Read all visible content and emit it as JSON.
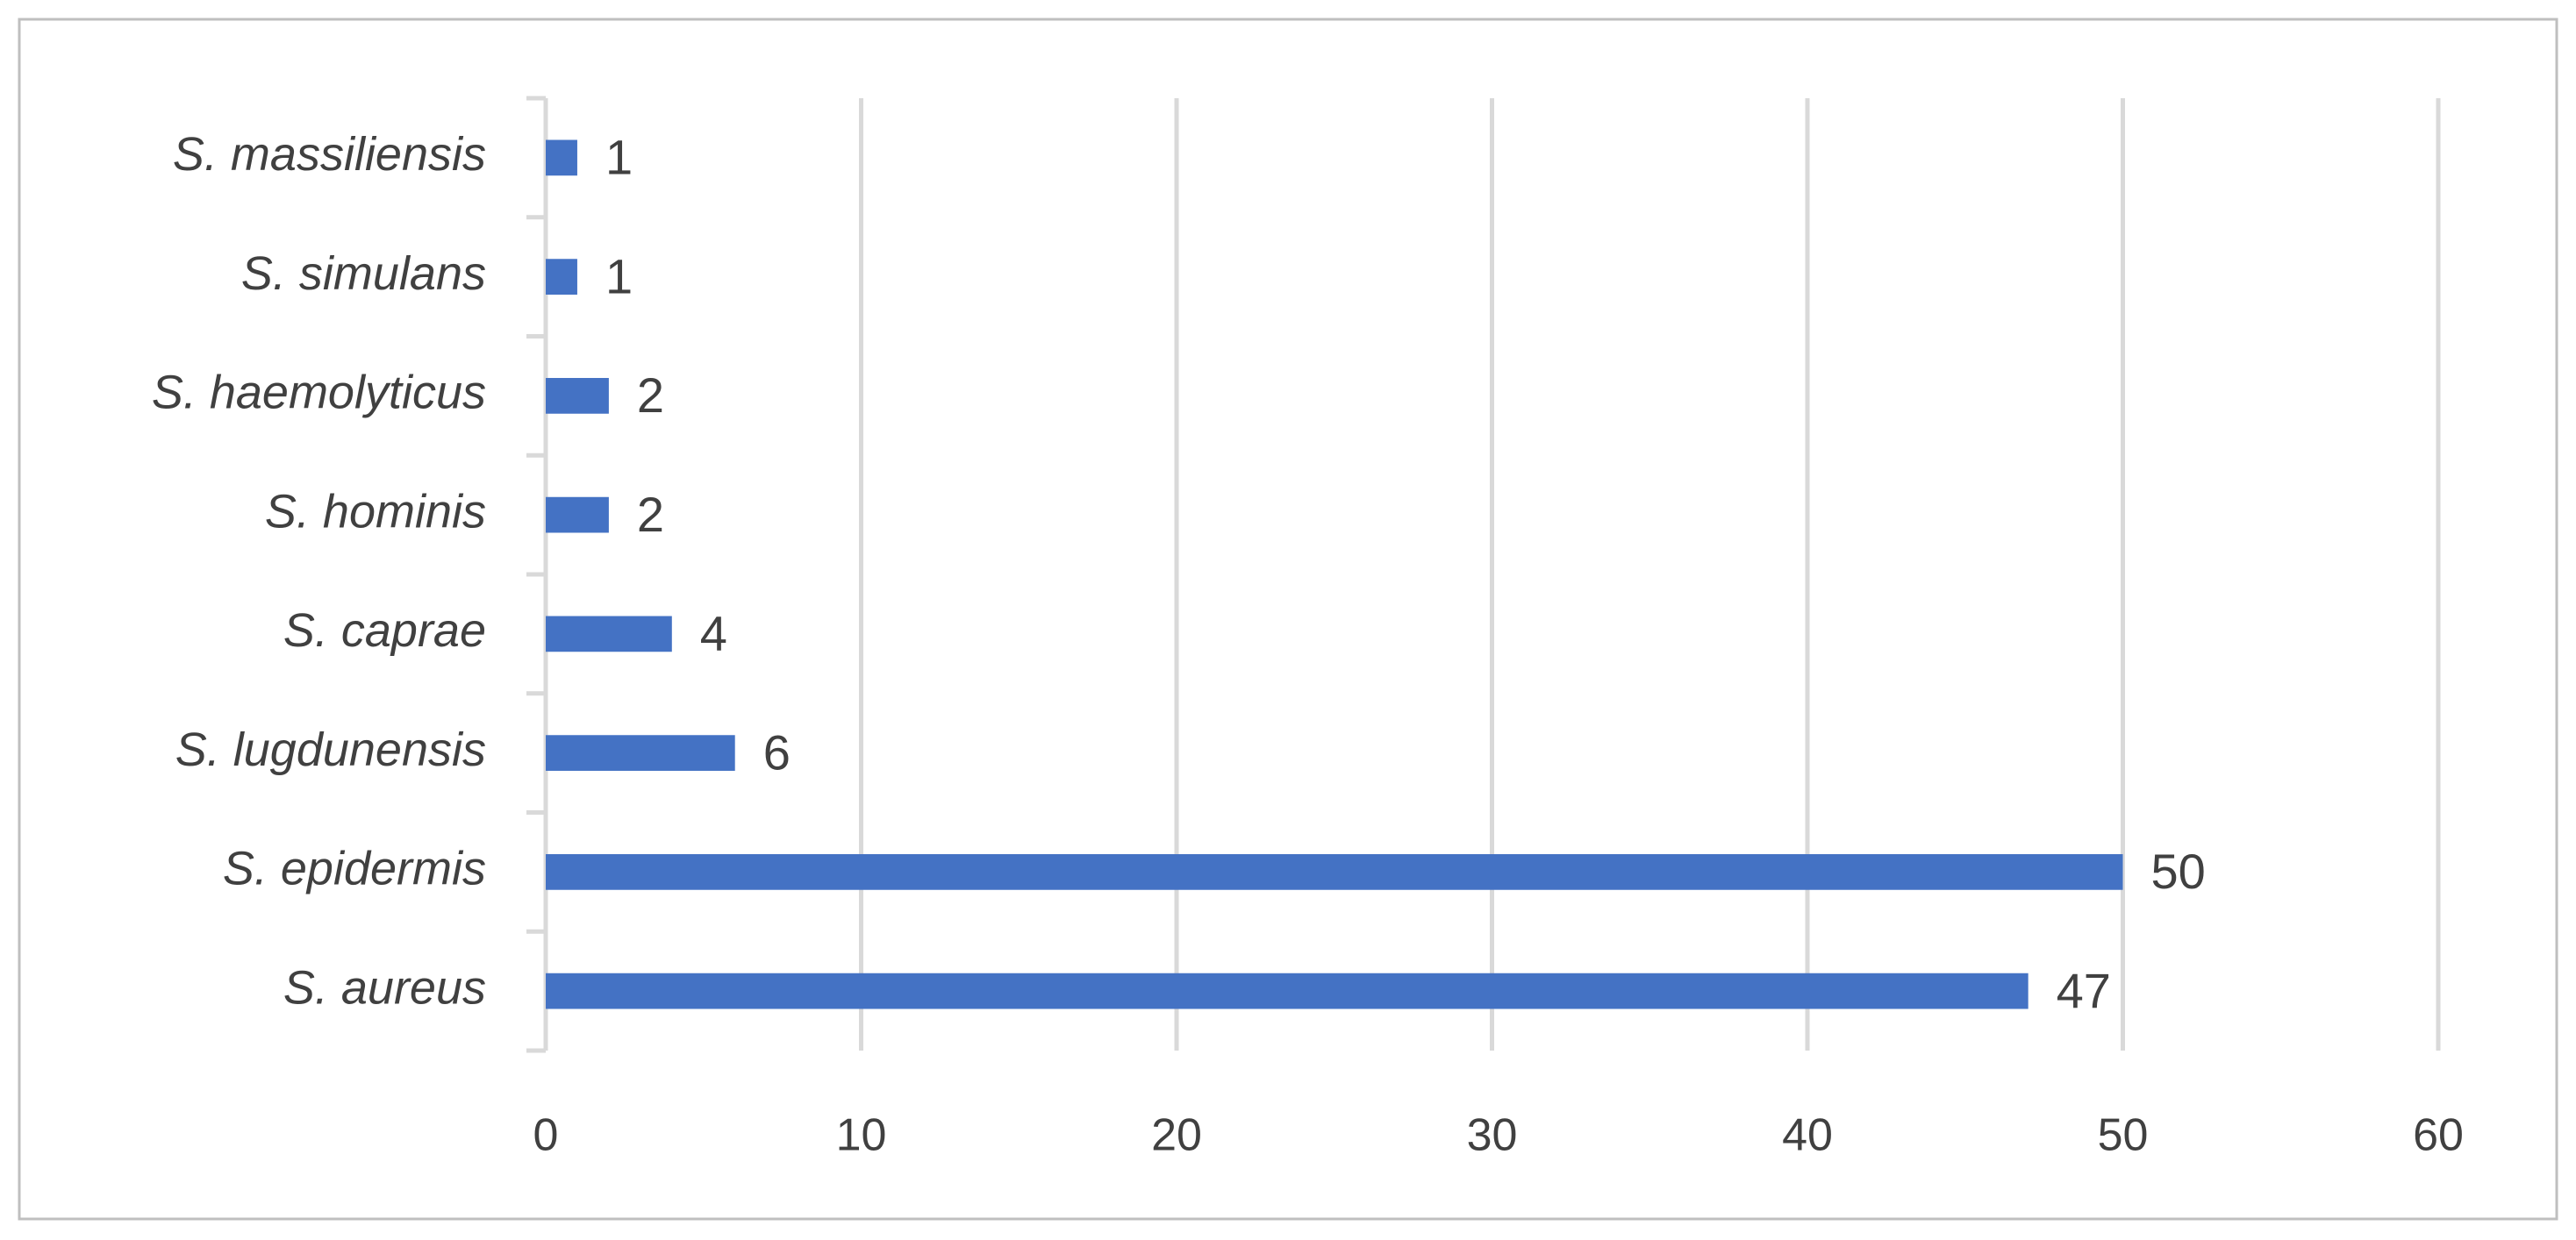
{
  "chart_data": {
    "type": "hbar",
    "categories": [
      "S. aureus",
      "S. epidermis",
      "S. lugdunensis",
      "S. caprae",
      "S. hominis",
      "S. haemolyticus",
      "S. simulans",
      "S. massiliensis"
    ],
    "values": [
      47,
      50,
      6,
      4,
      2,
      2,
      1,
      1
    ],
    "color": "#4472c4",
    "xlim": [
      0,
      60
    ],
    "xticks": [
      0,
      10,
      20,
      30,
      40,
      50,
      60
    ],
    "grid": true
  }
}
